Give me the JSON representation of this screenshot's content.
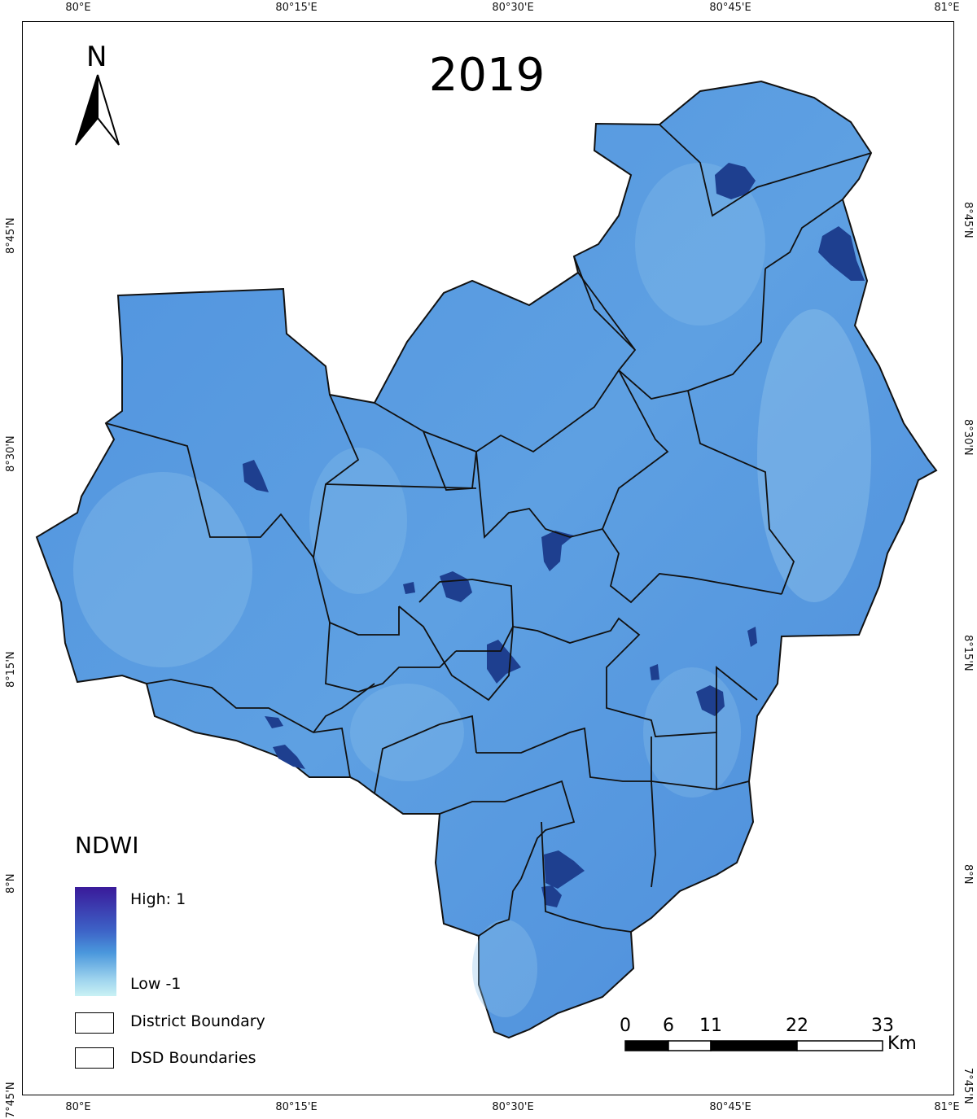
{
  "map": {
    "title": "2019",
    "north_label": "N",
    "graticule": {
      "top": [
        "80°E",
        "80°15'E",
        "80°30'E",
        "80°45'E",
        "81°E"
      ],
      "bottom": [
        "80°E",
        "80°15'E",
        "80°30'E",
        "80°45'E",
        "81°E"
      ],
      "left": [
        "8°45'N",
        "8°30'N",
        "8°15'N",
        "8°N",
        "7°45'N"
      ],
      "right": [
        "8°45'N",
        "8°30'N",
        "8°15'N",
        "8°N",
        "7°45'N"
      ]
    },
    "colors": {
      "ndwi_base": "#4a8fdc",
      "ndwi_light": "#9ecbee",
      "water_dark": "#1c3f8c",
      "boundary": "#111111"
    }
  },
  "legend": {
    "title": "NDWI",
    "high_label": "High: 1",
    "low_label": "Low -1",
    "high_color": "#3a1a9a",
    "low_color": "#c9f1f4",
    "district_label": "District Boundary",
    "dsd_label": "DSD Boundaries"
  },
  "scale_bar": {
    "labels": [
      "0",
      "6",
      "11",
      "22",
      "33"
    ],
    "unit": "Km"
  }
}
